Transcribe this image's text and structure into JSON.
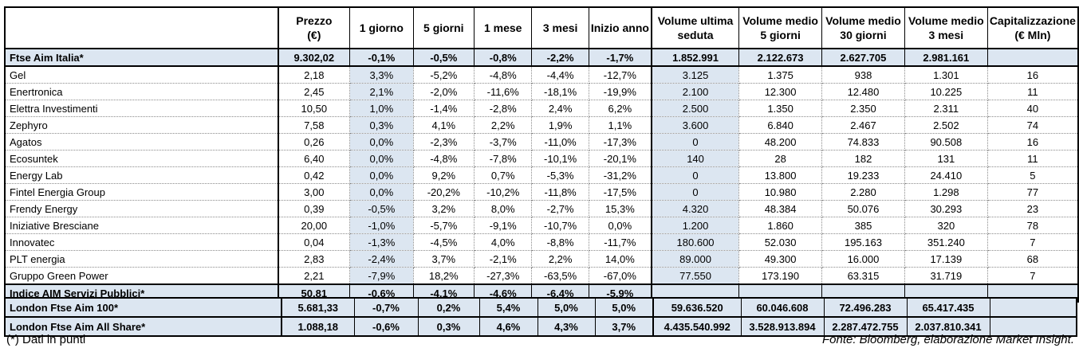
{
  "colors": {
    "accent_fill": "#dce6f1",
    "border": "#000000",
    "dotted_grid": "#8a8a8a"
  },
  "header": {
    "columns": [
      {
        "l1": "",
        "l2": ""
      },
      {
        "l1": "Prezzo",
        "l2": "(€)"
      },
      {
        "l1": "1 giorno",
        "l2": ""
      },
      {
        "l1": "5 giorni",
        "l2": ""
      },
      {
        "l1": "1 mese",
        "l2": ""
      },
      {
        "l1": "3 mesi",
        "l2": ""
      },
      {
        "l1": "Inizio anno",
        "l2": ""
      },
      {
        "l1": "Volume ultima",
        "l2": "seduta"
      },
      {
        "l1": "Volume medio",
        "l2": "5 giorni"
      },
      {
        "l1": "Volume medio",
        "l2": "30 giorni"
      },
      {
        "l1": "Volume medio",
        "l2": "3 mesi"
      },
      {
        "l1": "Capitalizzazione",
        "l2": "(€ Mln)"
      }
    ]
  },
  "main_table": {
    "rows": [
      {
        "type": "index",
        "name": "Ftse Aim Italia*",
        "values": [
          "9.302,02",
          "-0,1%",
          "-0,5%",
          "-0,8%",
          "-2,2%",
          "-1,7%",
          "1.852.991",
          "2.122.673",
          "2.627.705",
          "2.981.161",
          ""
        ]
      },
      {
        "type": "data",
        "name": "Gel",
        "values": [
          "2,18",
          "3,3%",
          "-5,2%",
          "-4,8%",
          "-4,4%",
          "-12,7%",
          "3.125",
          "1.375",
          "938",
          "1.301",
          "16"
        ]
      },
      {
        "type": "data",
        "name": "Enertronica",
        "values": [
          "2,45",
          "2,1%",
          "-2,0%",
          "-11,6%",
          "-18,1%",
          "-19,9%",
          "2.100",
          "12.300",
          "12.480",
          "10.225",
          "11"
        ]
      },
      {
        "type": "data",
        "name": "Elettra Investimenti",
        "values": [
          "10,50",
          "1,0%",
          "-1,4%",
          "-2,8%",
          "2,4%",
          "6,2%",
          "2.500",
          "1.350",
          "2.350",
          "2.311",
          "40"
        ]
      },
      {
        "type": "data",
        "name": "Zephyro",
        "values": [
          "7,58",
          "0,3%",
          "4,1%",
          "2,2%",
          "1,9%",
          "1,1%",
          "3.600",
          "6.840",
          "2.467",
          "2.502",
          "74"
        ]
      },
      {
        "type": "data",
        "name": "Agatos",
        "values": [
          "0,26",
          "0,0%",
          "-2,3%",
          "-3,7%",
          "-11,0%",
          "-17,3%",
          "0",
          "48.200",
          "74.833",
          "90.508",
          "16"
        ]
      },
      {
        "type": "data",
        "name": "Ecosuntek",
        "values": [
          "6,40",
          "0,0%",
          "-4,8%",
          "-7,8%",
          "-10,1%",
          "-20,1%",
          "140",
          "28",
          "182",
          "131",
          "11"
        ]
      },
      {
        "type": "data",
        "name": "Energy Lab",
        "values": [
          "0,42",
          "0,0%",
          "9,2%",
          "0,7%",
          "-5,3%",
          "-31,2%",
          "0",
          "13.800",
          "19.233",
          "24.410",
          "5"
        ]
      },
      {
        "type": "data",
        "name": "Fintel Energia Group",
        "values": [
          "3,00",
          "0,0%",
          "-20,2%",
          "-10,2%",
          "-11,8%",
          "-17,5%",
          "0",
          "10.980",
          "2.280",
          "1.298",
          "77"
        ]
      },
      {
        "type": "data",
        "name": "Frendy Energy",
        "values": [
          "0,39",
          "-0,5%",
          "3,2%",
          "8,0%",
          "-2,7%",
          "15,3%",
          "4.320",
          "48.384",
          "50.076",
          "30.293",
          "23"
        ]
      },
      {
        "type": "data",
        "name": "Iniziative Bresciane",
        "values": [
          "20,00",
          "-1,0%",
          "-5,7%",
          "-9,1%",
          "-10,7%",
          "0,0%",
          "1.200",
          "1.860",
          "385",
          "320",
          "78"
        ]
      },
      {
        "type": "data",
        "name": "Innovatec",
        "values": [
          "0,04",
          "-1,3%",
          "-4,5%",
          "4,0%",
          "-8,8%",
          "-11,7%",
          "180.600",
          "52.030",
          "195.163",
          "351.240",
          "7"
        ]
      },
      {
        "type": "data",
        "name": "PLT energia",
        "values": [
          "2,83",
          "-2,4%",
          "3,7%",
          "-2,1%",
          "2,2%",
          "14,0%",
          "89.000",
          "49.300",
          "16.000",
          "17.139",
          "68"
        ]
      },
      {
        "type": "data",
        "name": "Gruppo Green Power",
        "values": [
          "2,21",
          "-7,9%",
          "18,2%",
          "-27,3%",
          "-63,5%",
          "-67,0%",
          "77.550",
          "173.190",
          "63.315",
          "31.719",
          "7"
        ]
      },
      {
        "type": "index",
        "name": "Indice AIM Servizi Pubblici*",
        "values": [
          "50,81",
          "-0,6%",
          "-4,1%",
          "-4,6%",
          "-6,4%",
          "-5,9%",
          "",
          "",
          "",
          "",
          ""
        ]
      }
    ]
  },
  "london_table": {
    "rows": [
      {
        "type": "index",
        "name": "London Ftse Aim 100*",
        "values": [
          "5.681,33",
          "-0,7%",
          "0,2%",
          "5,4%",
          "5,0%",
          "5,0%",
          "59.636.520",
          "60.046.608",
          "72.496.283",
          "65.417.435",
          ""
        ]
      },
      {
        "type": "index",
        "name": "London Ftse Aim All Share*",
        "values": [
          "1.088,18",
          "-0,6%",
          "0,3%",
          "4,6%",
          "4,3%",
          "3,7%",
          "4.435.540.992",
          "3.528.913.894",
          "2.287.472.755",
          "2.037.810.341",
          ""
        ]
      }
    ]
  },
  "footer": {
    "left": "(*) Dati in punti",
    "right": "Fonte: Bloomberg, elaborazione Market Insight."
  }
}
